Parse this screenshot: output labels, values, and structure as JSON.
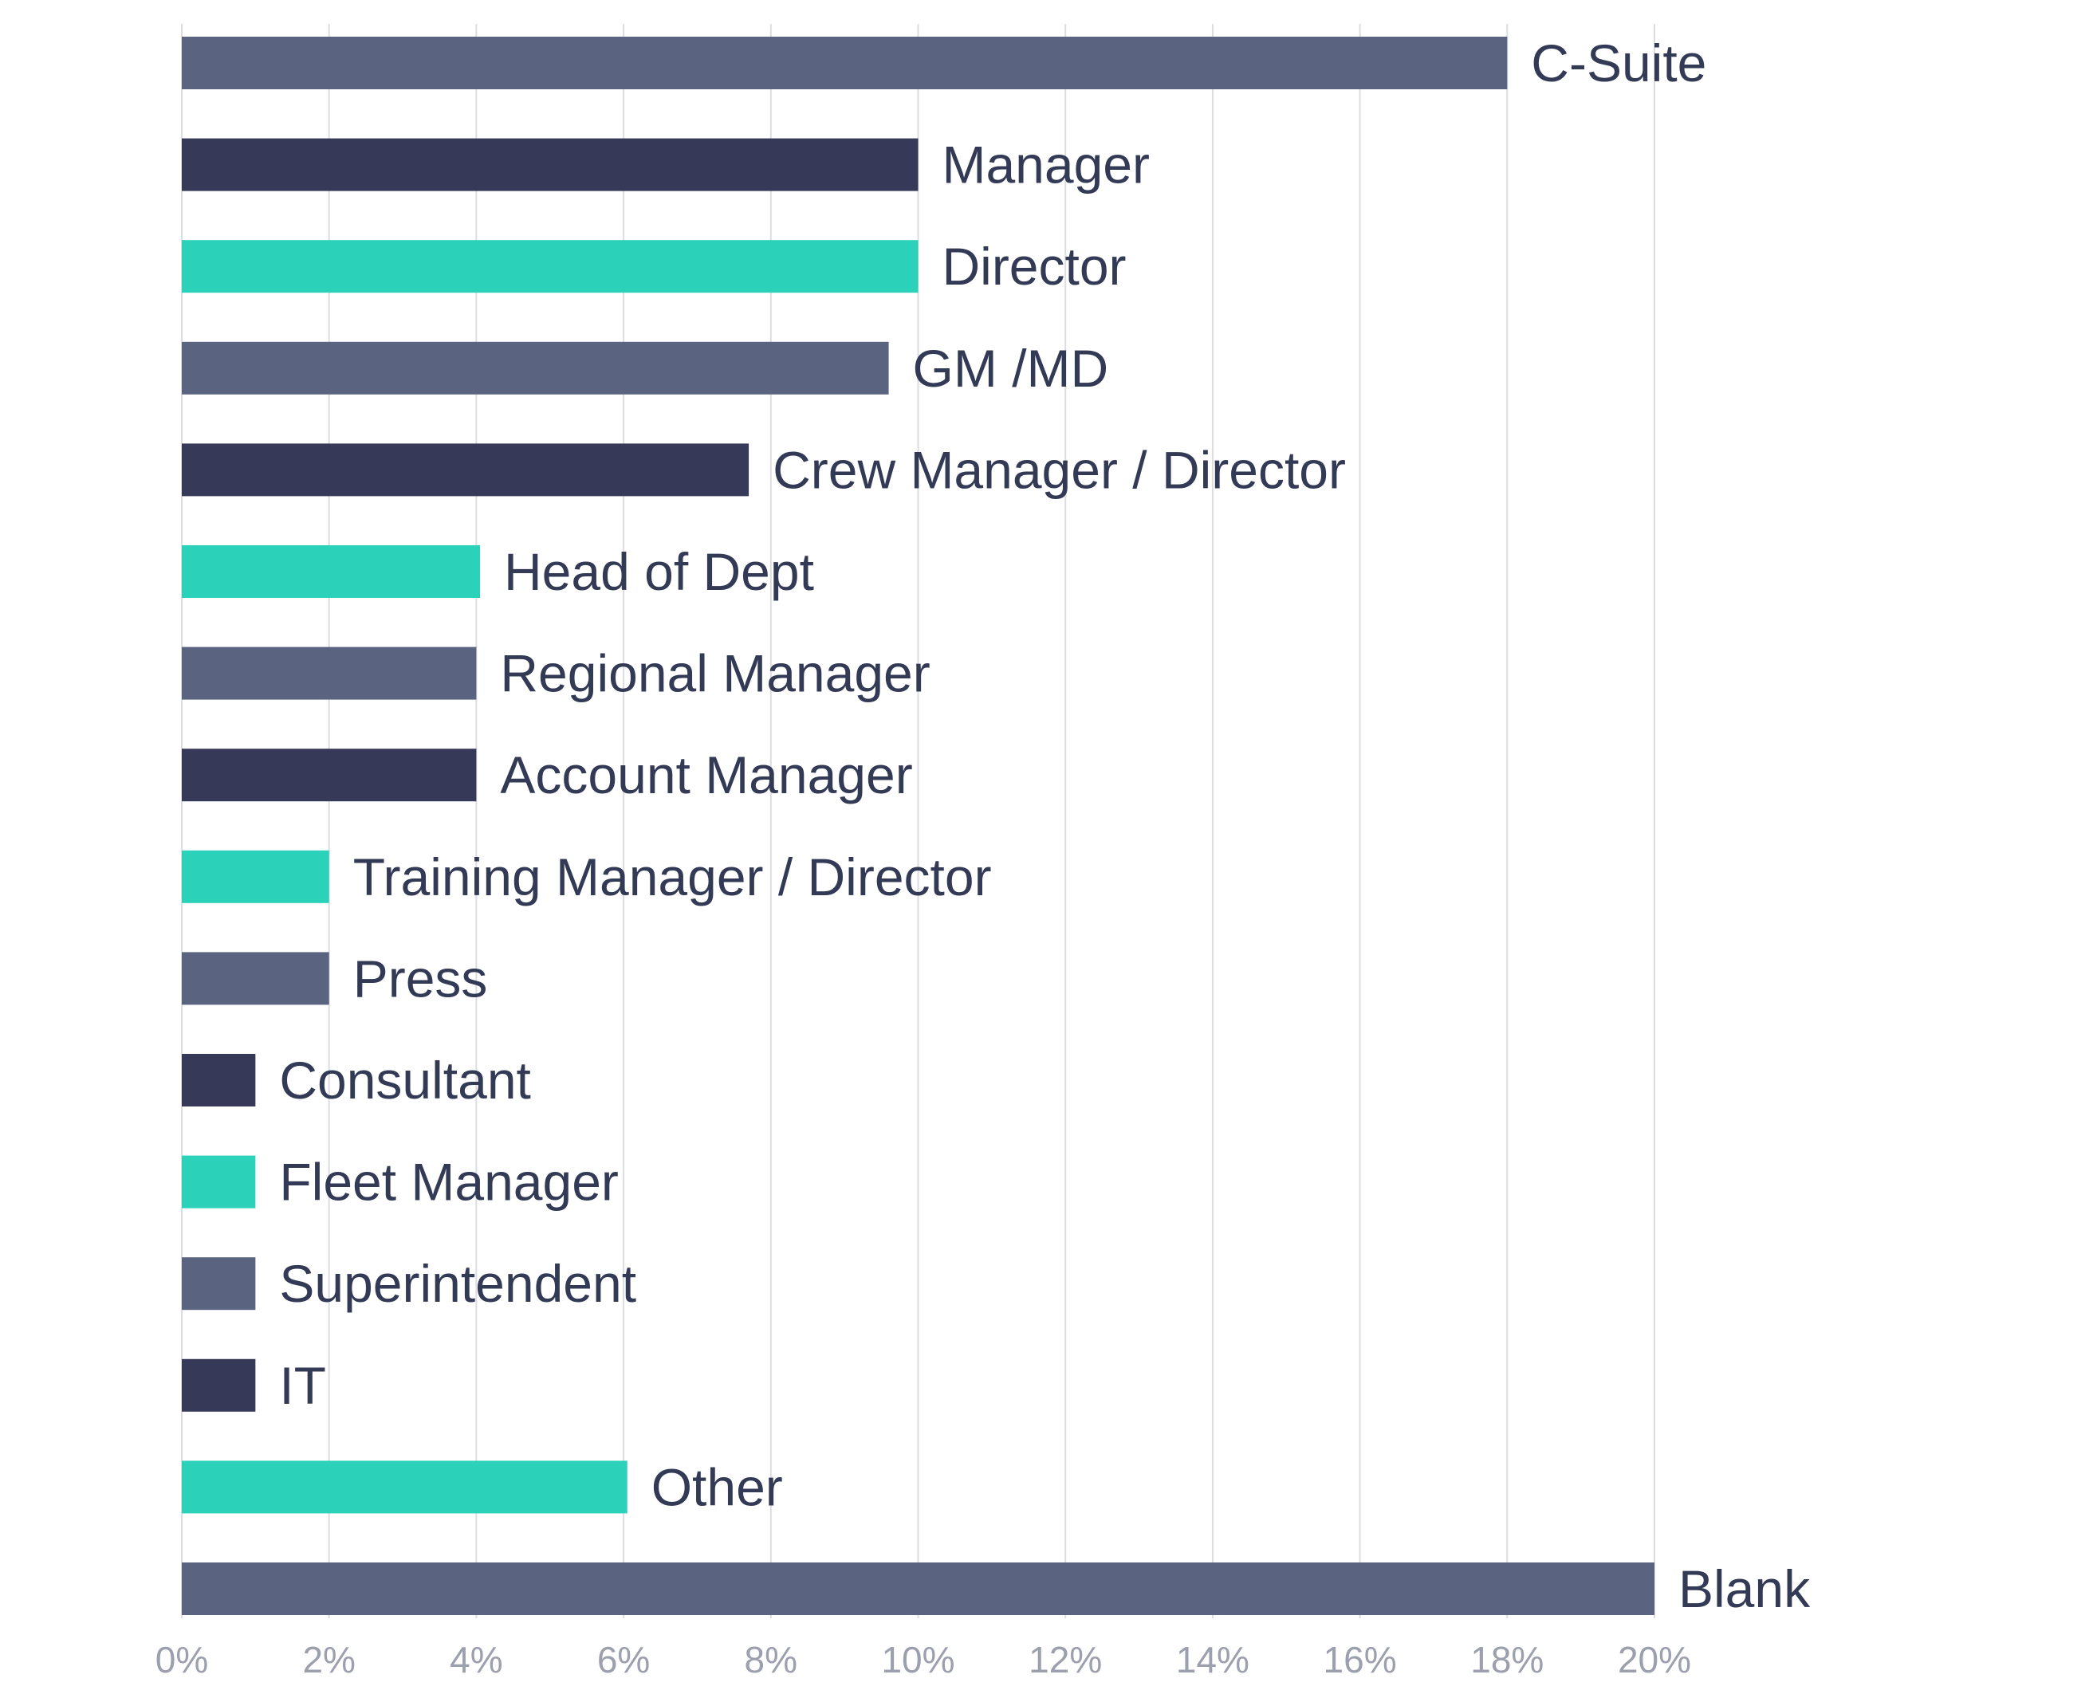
{
  "chart_data": {
    "type": "bar",
    "orientation": "horizontal",
    "categories": [
      "C-Suite",
      "Manager",
      "Director",
      "GM /MD",
      "Crew Manager / Director",
      "Head of Dept",
      "Regional Manager",
      "Account Manager",
      "Training Manager / Director",
      "Press",
      "Consultant",
      "Fleet Manager",
      "Superintendent",
      "IT",
      "Other",
      "Blank"
    ],
    "values": [
      18,
      10,
      10,
      9.6,
      7.7,
      4.05,
      4,
      4,
      2,
      2,
      1,
      1,
      1,
      1,
      6.05,
      20
    ],
    "colors": [
      "#5a6380",
      "#363a58",
      "#2bd1b9",
      "#5a6380",
      "#363a58",
      "#2bd1b9",
      "#5a6380",
      "#363a58",
      "#2bd1b9",
      "#5a6380",
      "#363a58",
      "#2bd1b9",
      "#5a6380",
      "#363a58",
      "#2bd1b9",
      "#5a6380"
    ],
    "xlim": [
      0,
      20
    ],
    "xticks": [
      0,
      2,
      4,
      6,
      8,
      10,
      12,
      14,
      16,
      18,
      20
    ],
    "xtick_labels": [
      "0%",
      "2%",
      "4%",
      "6%",
      "8%",
      "10%",
      "12%",
      "14%",
      "16%",
      "18%",
      "20%"
    ],
    "grid": "vertical",
    "legend": "none",
    "title": "",
    "xlabel": "",
    "ylabel": ""
  }
}
